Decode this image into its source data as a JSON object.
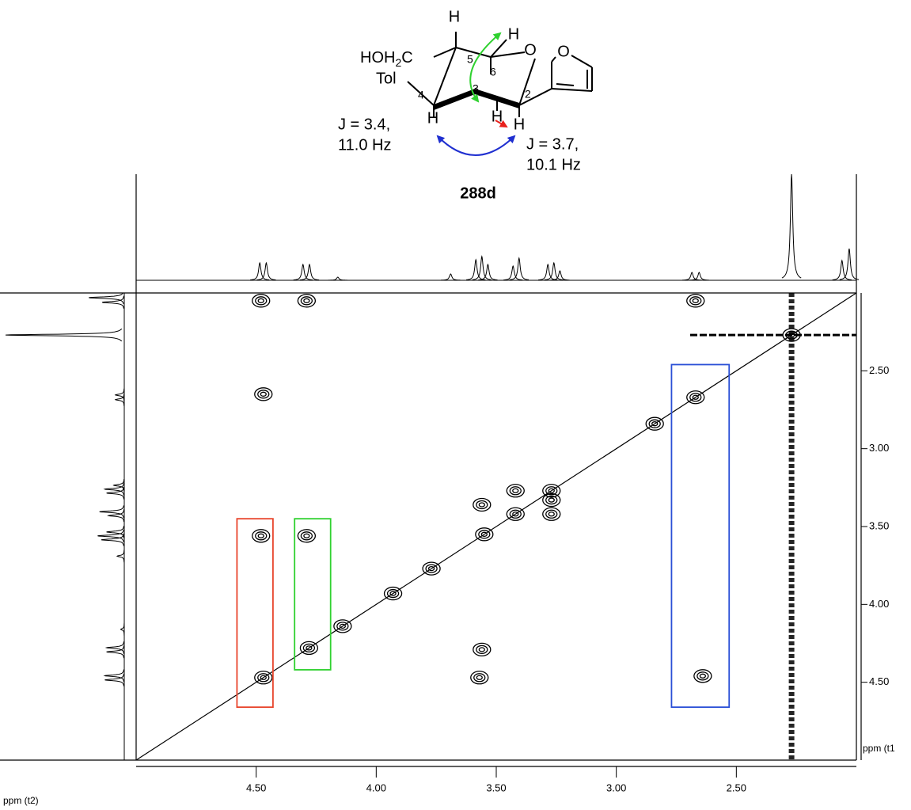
{
  "structure": {
    "atoms": [
      "H",
      "H",
      "O",
      "O",
      "H",
      "H",
      "H"
    ],
    "numbers": [
      "5",
      "6",
      "3",
      "4",
      "2"
    ],
    "substituent": [
      "HOH",
      "2",
      "C"
    ],
    "tol": "Tol",
    "coupling_left": [
      "J = 3.4,",
      "11.0 Hz"
    ],
    "coupling_right": [
      "J = 3.7,",
      "10.1 Hz"
    ],
    "name": "288d"
  },
  "chart_data": {
    "type": "contour",
    "xlabel": "ppm (t2)",
    "ylabel": "ppm (t1",
    "xlim": [
      5.0,
      2.0
    ],
    "ylim": [
      2.0,
      5.0
    ],
    "xticks": [
      {
        "value": 4.5,
        "label": "4.50"
      },
      {
        "value": 4.0,
        "label": "4.00"
      },
      {
        "value": 3.5,
        "label": "3.50"
      },
      {
        "value": 3.0,
        "label": "3.00"
      },
      {
        "value": 2.5,
        "label": "2.50"
      }
    ],
    "yticks": [
      {
        "value": 2.5,
        "label": "2.50"
      },
      {
        "value": 3.0,
        "label": "3.00"
      },
      {
        "value": 3.5,
        "label": "3.50"
      },
      {
        "value": 4.0,
        "label": "4.00"
      },
      {
        "value": 4.5,
        "label": "4.50"
      }
    ],
    "x": [
      4.47,
      4.28,
      4.14,
      3.93,
      3.77,
      3.55,
      3.42,
      3.27,
      2.84,
      2.67,
      2.27,
      4.48,
      4.29,
      2.67,
      4.47,
      4.29,
      4.48,
      3.56,
      3.42,
      3.27,
      3.56,
      3.27,
      2.64,
      3.57
    ],
    "y": [
      4.47,
      4.28,
      4.14,
      3.93,
      3.77,
      3.55,
      3.42,
      3.27,
      2.84,
      2.67,
      2.27,
      2.05,
      2.05,
      2.05,
      2.65,
      3.56,
      3.56,
      4.29,
      3.27,
      3.42,
      3.36,
      3.33,
      4.46,
      4.47
    ],
    "projection": {
      "positions": [
        4.485,
        4.458,
        4.305,
        4.278,
        4.16,
        3.69,
        3.585,
        3.56,
        3.535,
        3.43,
        3.405,
        3.285,
        3.26,
        3.235,
        2.685,
        2.655,
        2.27,
        2.06,
        2.03
      ],
      "heights": [
        22,
        22,
        20,
        20,
        4,
        8,
        26,
        30,
        20,
        18,
        28,
        20,
        22,
        12,
        10,
        10,
        134,
        25,
        40
      ]
    },
    "highlights": [
      {
        "color": "#e8452c",
        "xlim": [
          4.58,
          4.43
        ],
        "ylim": [
          3.45,
          4.66
        ]
      },
      {
        "color": "#2fd12f",
        "xlim": [
          4.34,
          4.19
        ],
        "ylim": [
          3.45,
          4.42
        ]
      },
      {
        "color": "#2a4fd6",
        "xlim": [
          2.77,
          2.53
        ],
        "ylim": [
          2.46,
          4.66
        ]
      }
    ]
  }
}
